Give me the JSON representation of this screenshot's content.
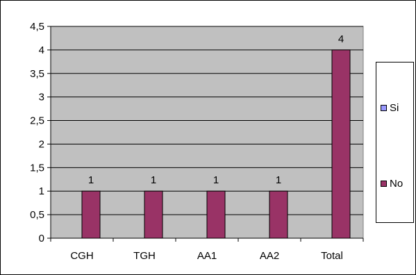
{
  "chart_data": {
    "type": "bar",
    "categories": [
      "CGH",
      "TGH",
      "AA1",
      "AA2",
      "Total"
    ],
    "series": [
      {
        "name": "Si",
        "values": [
          0,
          0,
          0,
          0,
          0
        ],
        "color": "#9999ff"
      },
      {
        "name": "No",
        "values": [
          1,
          1,
          1,
          1,
          4
        ],
        "color": "#993366"
      }
    ],
    "data_labels": [
      "1",
      "1",
      "1",
      "1",
      "4"
    ],
    "y_ticks": [
      "0",
      "0,5",
      "1",
      "1,5",
      "2",
      "2,5",
      "3",
      "3,5",
      "4",
      "4,5"
    ],
    "ylim": [
      0,
      4.5
    ],
    "grid": true,
    "plot_background": "#c0c0c0",
    "legend_position": "right"
  }
}
